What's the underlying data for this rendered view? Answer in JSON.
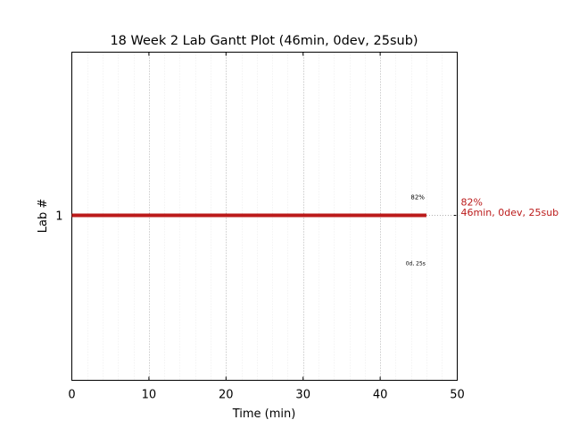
{
  "chart_data": {
    "type": "gantt",
    "title": "18 Week 2 Lab Gantt Plot (46min, 0dev, 25sub)",
    "xlabel": "Time (min)",
    "ylabel": "Lab #",
    "xlim": [
      0,
      50
    ],
    "xticks": [
      "0",
      "10",
      "20",
      "30",
      "40",
      "50"
    ],
    "xtick_values": [
      0,
      10,
      20,
      30,
      40,
      50
    ],
    "yticks": [
      "1"
    ],
    "grid": true,
    "bars": [
      {
        "lab": 1,
        "start": 0,
        "end": 46,
        "color": "#bb1a1a",
        "percent_label": "82%",
        "detail_label": "0d, 25s",
        "side_label_line1": "82%",
        "side_label_line2": "46min, 0dev, 25sub"
      }
    ]
  },
  "colors": {
    "bar": "#bb1a1a",
    "side_text": "#bb1a1a",
    "major_grid": "#b0b0b0",
    "minor_grid": "#ececec"
  }
}
